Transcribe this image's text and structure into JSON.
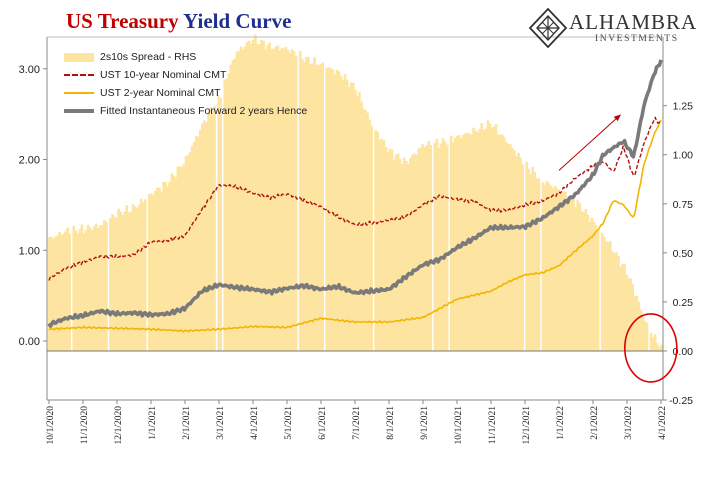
{
  "title": {
    "part1": "US Treasury",
    "part2": "Yield Curve"
  },
  "logo": {
    "name": "ALHAMBRA",
    "sub": "INVESTMENTS",
    "icon": "diamond-lattice-icon"
  },
  "legend": [
    {
      "key": "spread",
      "label": "2s10s Spread - RHS"
    },
    {
      "key": "y10",
      "label": "UST 10-year Nominal CMT"
    },
    {
      "key": "y2",
      "label": "UST 2-year Nominal CMT"
    },
    {
      "key": "fwd",
      "label": "Fitted Instantaneous Forward 2 years Hence"
    }
  ],
  "chart_data": {
    "type": "line",
    "x_ticks": [
      "10/1/2020",
      "11/1/2020",
      "12/1/2020",
      "1/1/2021",
      "2/1/2021",
      "3/1/2021",
      "4/1/2021",
      "5/1/2021",
      "6/1/2021",
      "7/1/2021",
      "8/1/2021",
      "9/1/2021",
      "10/1/2021",
      "11/1/2021",
      "12/1/2021",
      "1/1/2022",
      "2/1/2022",
      "3/1/2022",
      "4/1/2022"
    ],
    "y_left": {
      "ticks": [
        "0.00",
        "1.00",
        "2.00",
        "3.00"
      ],
      "range": [
        -0.65,
        3.35
      ]
    },
    "y_right": {
      "ticks": [
        "-0.25",
        "0.00",
        "0.25",
        "0.50",
        "0.75",
        "1.00",
        "1.25"
      ],
      "range": [
        -0.25,
        1.6
      ]
    },
    "series": [
      {
        "name": "2s10s Spread - RHS",
        "axis": "right",
        "color": "#fde4a0",
        "x": [
          0,
          0.5,
          1,
          1.5,
          2,
          2.5,
          3,
          3.5,
          4,
          4.5,
          5,
          5.5,
          6,
          6.5,
          7,
          7.5,
          8,
          8.5,
          9,
          9.5,
          10,
          10.5,
          11,
          11.5,
          12,
          12.5,
          13,
          13.5,
          14,
          14.5,
          15,
          15.5,
          16,
          16.5,
          17,
          17.25,
          17.5,
          17.75,
          18
        ],
        "values": [
          0.57,
          0.61,
          0.62,
          0.64,
          0.7,
          0.73,
          0.8,
          0.86,
          0.97,
          1.15,
          1.3,
          1.52,
          1.59,
          1.55,
          1.54,
          1.49,
          1.46,
          1.42,
          1.34,
          1.15,
          1.02,
          0.96,
          1.05,
          1.06,
          1.09,
          1.12,
          1.16,
          1.06,
          0.95,
          0.87,
          0.82,
          0.76,
          0.66,
          0.54,
          0.4,
          0.29,
          0.16,
          0.08,
          0.02
        ]
      },
      {
        "name": "UST 10-year Nominal CMT",
        "axis": "left",
        "color": "#b01010",
        "x": [
          0,
          0.5,
          1,
          1.5,
          2,
          2.5,
          3,
          3.5,
          4,
          4.5,
          5,
          5.5,
          6,
          6.5,
          7,
          7.5,
          8,
          8.5,
          9,
          9.5,
          10,
          10.5,
          11,
          11.5,
          12,
          12.5,
          13,
          13.5,
          14,
          14.5,
          15,
          15.5,
          16,
          16.3,
          16.6,
          16.9,
          17.2,
          17.5,
          17.8,
          18
        ],
        "values": [
          0.69,
          0.8,
          0.87,
          0.93,
          0.93,
          0.95,
          1.09,
          1.11,
          1.16,
          1.45,
          1.72,
          1.7,
          1.63,
          1.58,
          1.62,
          1.55,
          1.48,
          1.37,
          1.28,
          1.3,
          1.33,
          1.37,
          1.5,
          1.6,
          1.56,
          1.54,
          1.44,
          1.44,
          1.5,
          1.54,
          1.63,
          1.8,
          1.93,
          1.98,
          1.86,
          2.14,
          1.8,
          2.18,
          2.45,
          2.39
        ]
      },
      {
        "name": "UST 2-year Nominal CMT",
        "axis": "left",
        "color": "#f2b500",
        "x": [
          0,
          1,
          2,
          3,
          4,
          5,
          6,
          7,
          8,
          9,
          10,
          11,
          12,
          13,
          13.5,
          14,
          14.5,
          15,
          15.5,
          16,
          16.3,
          16.6,
          16.9,
          17.2,
          17.5,
          17.8,
          18
        ],
        "values": [
          0.13,
          0.15,
          0.14,
          0.13,
          0.11,
          0.13,
          0.16,
          0.15,
          0.25,
          0.21,
          0.21,
          0.26,
          0.46,
          0.55,
          0.65,
          0.73,
          0.75,
          0.83,
          1.0,
          1.16,
          1.3,
          1.55,
          1.5,
          1.35,
          1.95,
          2.28,
          2.43
        ]
      },
      {
        "name": "Fitted Instantaneous Forward 2 years Hence",
        "axis": "left",
        "color": "#7a7a7a",
        "x": [
          0,
          0.5,
          1,
          1.5,
          2,
          2.5,
          3,
          3.5,
          4,
          4.5,
          5,
          5.5,
          6,
          6.5,
          7,
          7.5,
          8,
          8.5,
          9,
          9.5,
          10,
          10.5,
          11,
          11.5,
          12,
          12.5,
          13,
          13.5,
          14,
          14.5,
          15,
          15.5,
          16,
          16.3,
          16.6,
          16.9,
          17.2,
          17.5,
          17.8,
          18
        ],
        "values": [
          0.18,
          0.25,
          0.28,
          0.33,
          0.3,
          0.31,
          0.29,
          0.3,
          0.36,
          0.55,
          0.62,
          0.59,
          0.57,
          0.54,
          0.58,
          0.61,
          0.57,
          0.6,
          0.53,
          0.55,
          0.57,
          0.71,
          0.84,
          0.9,
          1.03,
          1.13,
          1.25,
          1.25,
          1.26,
          1.35,
          1.48,
          1.62,
          1.83,
          2.05,
          2.13,
          2.2,
          2.03,
          2.6,
          2.95,
          3.09
        ]
      }
    ],
    "annotations": [
      {
        "type": "arrow",
        "color": "#c00000",
        "from": [
          15.0,
          1.88
        ],
        "to": [
          16.8,
          2.49
        ]
      },
      {
        "type": "ellipse",
        "color": "#dd0000",
        "center": [
          17.7,
          0.0
        ],
        "note": "spread near zero"
      }
    ]
  }
}
